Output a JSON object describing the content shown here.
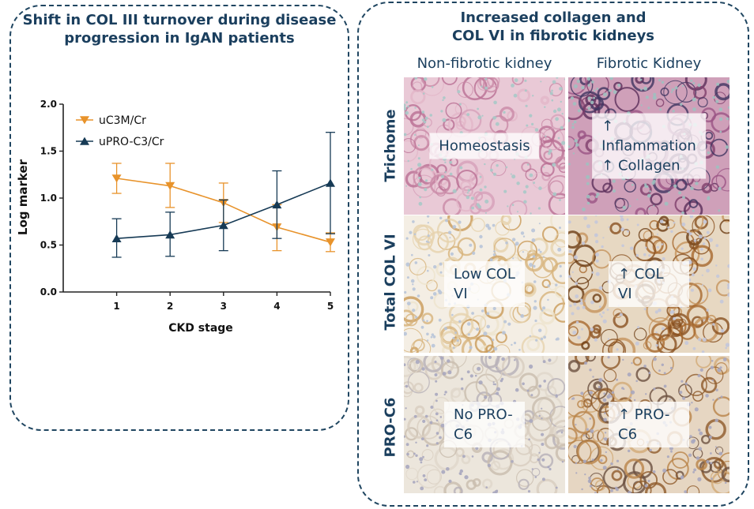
{
  "left_panel": {
    "title": "Shift in COL III turnover during disease\nprogression in IgAN patients"
  },
  "chart_data": {
    "type": "line",
    "xlabel": "CKD stage",
    "ylabel": "Log marker",
    "x": [
      1,
      2,
      3,
      4,
      5
    ],
    "xlim": [
      0,
      5
    ],
    "ylim": [
      0.0,
      2.0
    ],
    "yticks": [
      "0.0",
      "0.5",
      "1.0",
      "1.5",
      "2.0"
    ],
    "xticks": [
      "1",
      "2",
      "3",
      "4",
      "5"
    ],
    "grid": false,
    "legend_position": "top-left",
    "series": [
      {
        "name": "uC3M/Cr",
        "color": "#e8932b",
        "marker": "triangle-down",
        "values": [
          1.21,
          1.13,
          0.95,
          0.69,
          0.53
        ],
        "err_low": [
          1.05,
          0.9,
          0.74,
          0.44,
          0.43
        ],
        "err_high": [
          1.37,
          1.37,
          1.16,
          0.93,
          0.63
        ]
      },
      {
        "name": "uPRO-C3/Cr",
        "color": "#163a55",
        "marker": "triangle-up",
        "values": [
          0.57,
          0.61,
          0.71,
          0.93,
          1.16
        ],
        "err_low": [
          0.37,
          0.38,
          0.44,
          0.57,
          0.62
        ],
        "err_high": [
          0.78,
          0.85,
          0.98,
          1.29,
          1.7
        ]
      }
    ]
  },
  "right_panel": {
    "title": "Increased collagen and\nCOL VI in fibrotic kidneys",
    "columns": [
      "Non-fibrotic kidney",
      "Fibrotic Kidney"
    ],
    "rows": [
      "Trichome",
      "Total COL VI",
      "PRO-C6"
    ],
    "tiles": [
      {
        "label": "Homeostasis",
        "stain": "trichrome-normal"
      },
      {
        "label": "↑ Inflammation\n↑ Collagen",
        "stain": "trichrome-fibrotic"
      },
      {
        "label": "Low COL VI",
        "stain": "colvi-normal"
      },
      {
        "label": "↑ COL VI",
        "stain": "colvi-fibrotic"
      },
      {
        "label": "No PRO-C6",
        "stain": "proc6-normal"
      },
      {
        "label": "↑ PRO-C6",
        "stain": "proc6-fibrotic"
      }
    ]
  }
}
